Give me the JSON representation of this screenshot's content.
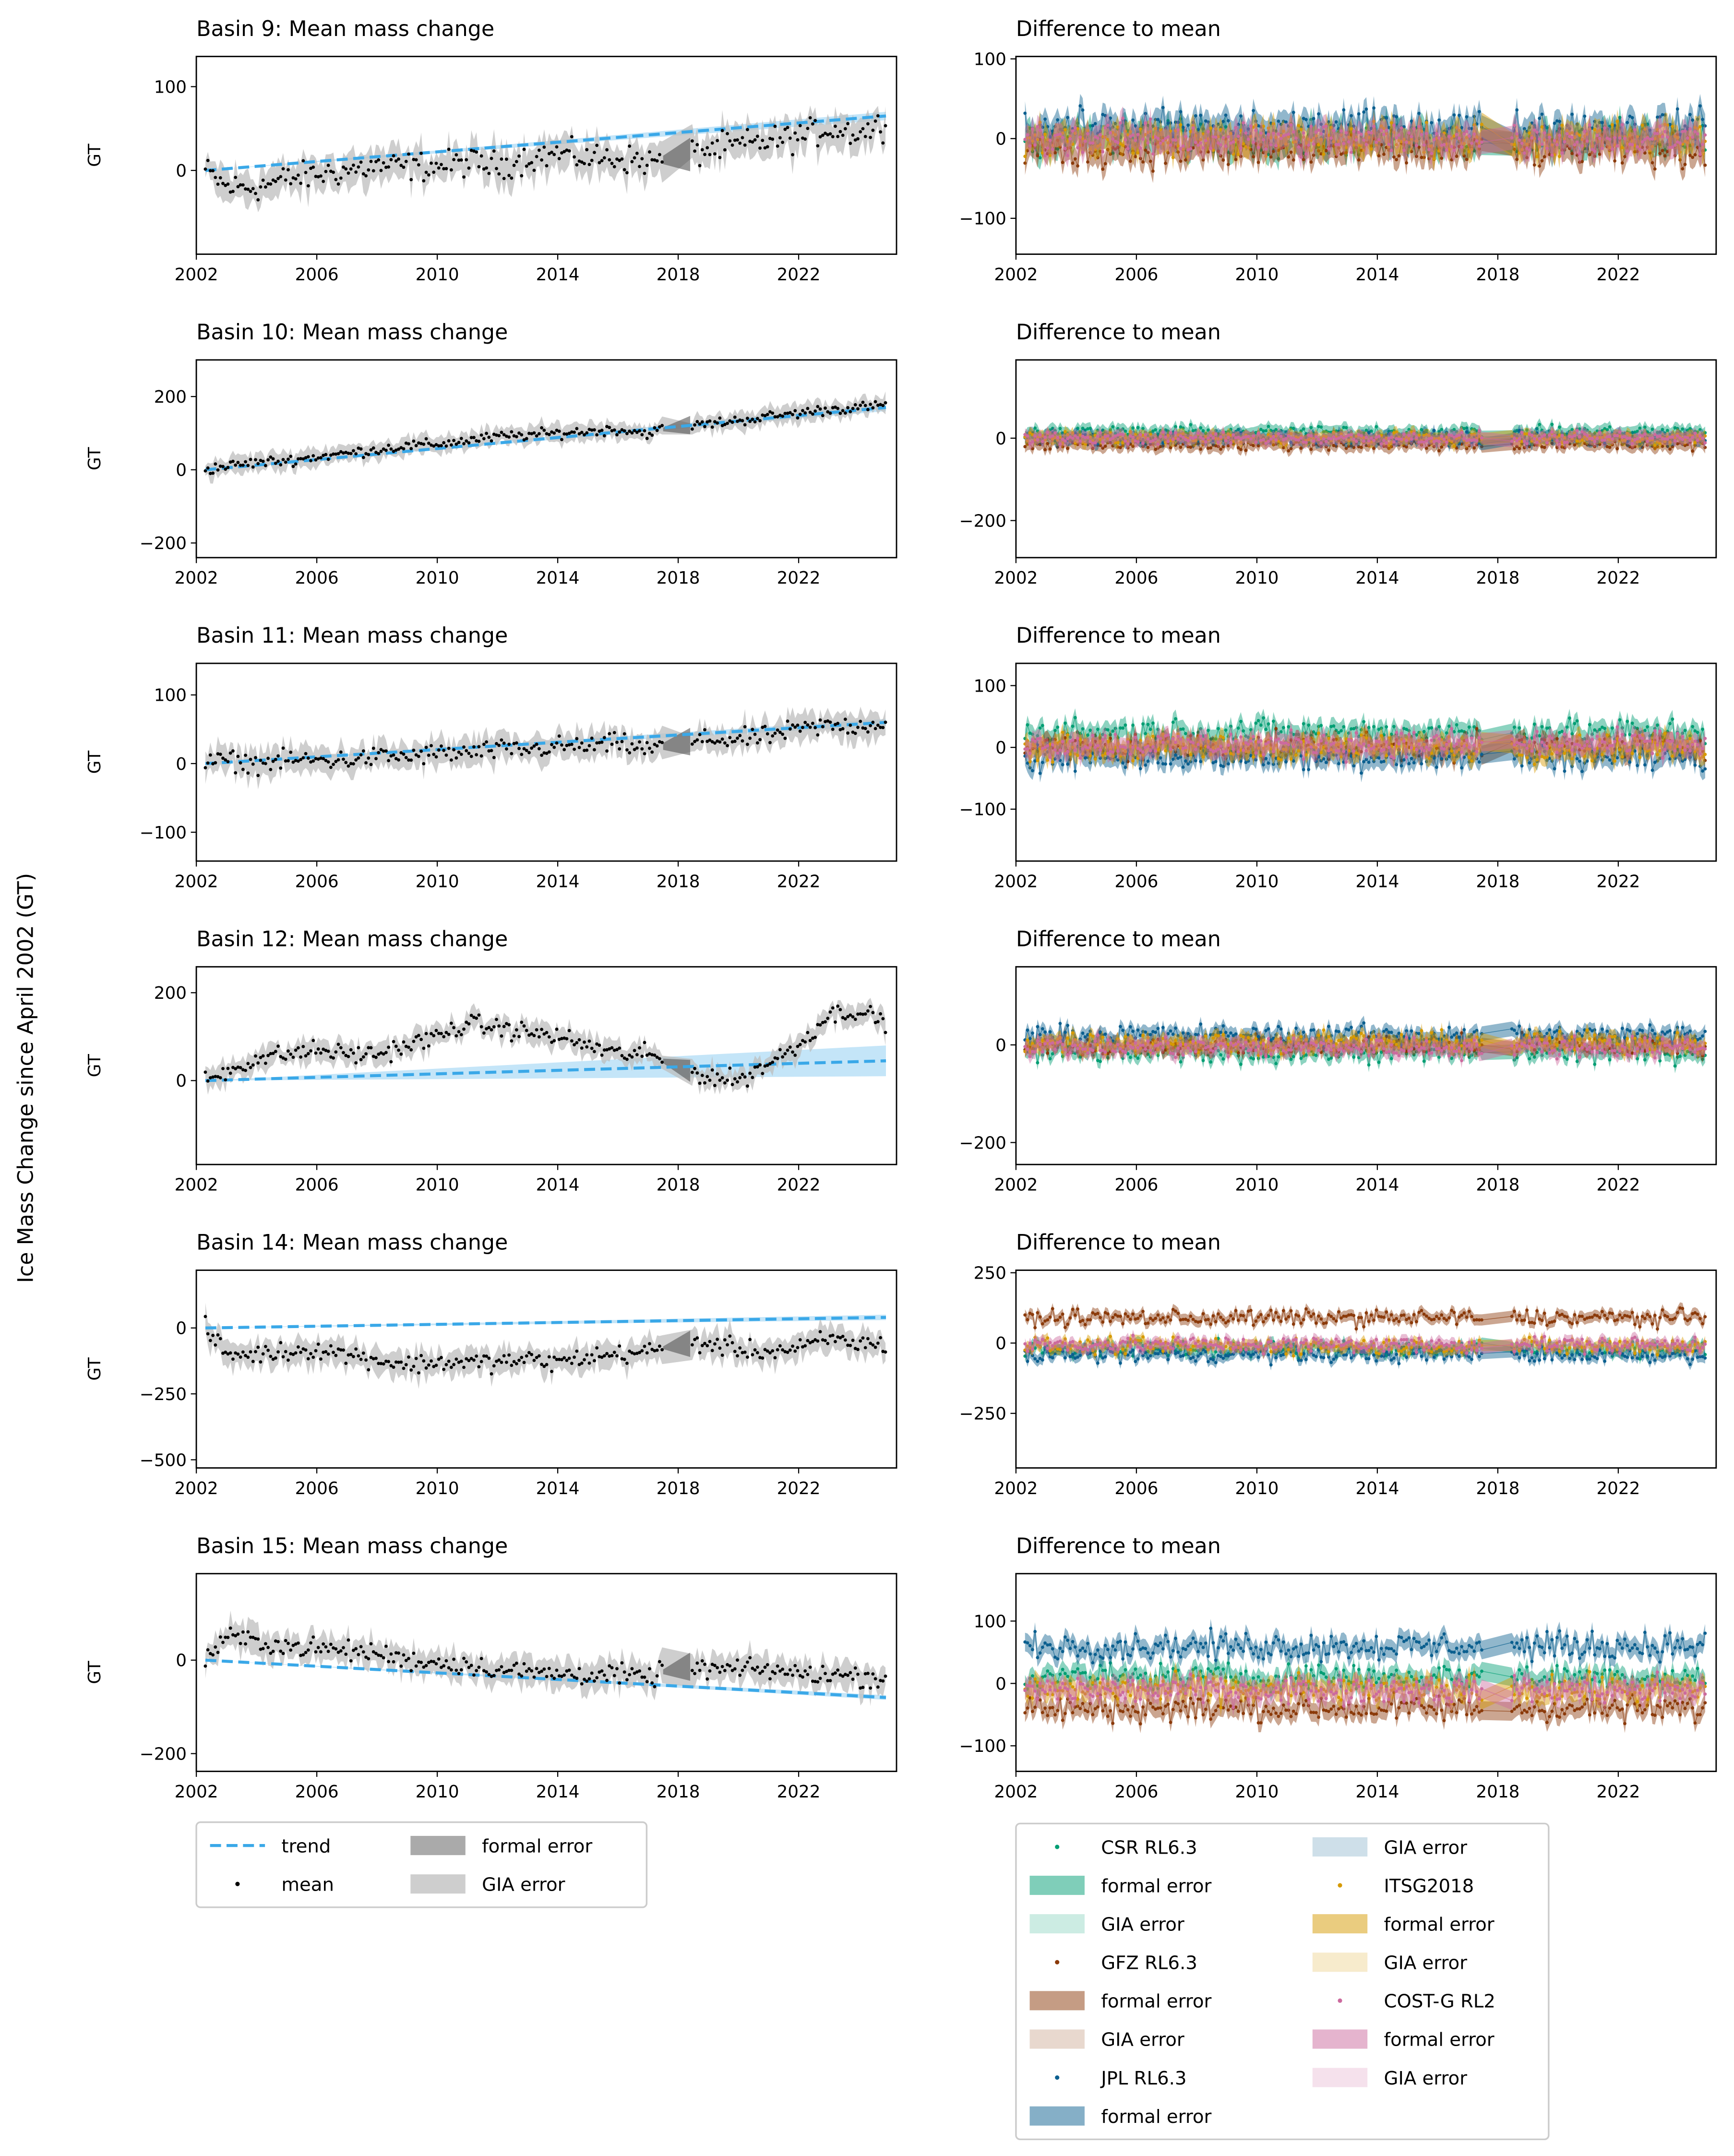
{
  "suptitle": "Ice Mass Change since April 2002 (GT)",
  "colors": {
    "trend": "#3AA8E8",
    "mean": "#000000",
    "formal": "#555555",
    "gia": "#bdbdbd",
    "CSR": "#009E73",
    "GFZ": "#8B3A0A",
    "JPL": "#0B5F8F",
    "ITSG": "#D69A00",
    "COSTG": "#CC6A9E"
  },
  "chart_data": [
    {
      "type": "line",
      "title": "Basin 9: Mean mass change",
      "ylabel": "GT",
      "xlim": [
        2002,
        2025.25
      ],
      "ylim": [
        -100,
        136
      ],
      "yticks": [
        0,
        100
      ],
      "xticks": [
        2002,
        2006,
        2010,
        2014,
        2018,
        2022
      ],
      "x": [
        2002.3,
        2003,
        2004,
        2005,
        2006,
        2007,
        2008,
        2009,
        2010,
        2011,
        2012,
        2013,
        2014,
        2015,
        2016,
        2017,
        2018,
        2019,
        2020,
        2021,
        2022,
        2023,
        2024,
        2024.9
      ],
      "mean": [
        0,
        -20,
        -20,
        -10,
        -5,
        0,
        5,
        5,
        5,
        10,
        5,
        15,
        20,
        15,
        15,
        10,
        15,
        25,
        30,
        35,
        40,
        50,
        45,
        55
      ],
      "trend": [
        0,
        65
      ],
      "trend_err": 5,
      "gia_err": 20,
      "noise": 12
    },
    {
      "type": "line",
      "title": "Basin 10: Mean mass change",
      "ylabel": "GT",
      "xlim": [
        2002,
        2025.25
      ],
      "ylim": [
        -240,
        300
      ],
      "yticks": [
        -200,
        0,
        200
      ],
      "xticks": [
        2002,
        2006,
        2010,
        2014,
        2018,
        2022
      ],
      "x": [
        2002.3,
        2003,
        2004,
        2005,
        2006,
        2007,
        2008,
        2009,
        2010,
        2011,
        2012,
        2013,
        2014,
        2015,
        2016,
        2017,
        2018,
        2019,
        2020,
        2021,
        2022,
        2023,
        2024,
        2024.9
      ],
      "mean": [
        0,
        10,
        20,
        25,
        35,
        45,
        55,
        65,
        70,
        80,
        90,
        95,
        100,
        105,
        110,
        100,
        120,
        125,
        135,
        145,
        155,
        165,
        170,
        175
      ],
      "trend": [
        0,
        170
      ],
      "trend_err": 10,
      "gia_err": 25,
      "noise": 10
    },
    {
      "type": "line",
      "title": "Basin 11: Mean mass change",
      "ylabel": "GT",
      "xlim": [
        2002,
        2025.25
      ],
      "ylim": [
        -142,
        146
      ],
      "yticks": [
        -100,
        0,
        100
      ],
      "xticks": [
        2002,
        2006,
        2010,
        2014,
        2018,
        2022
      ],
      "x": [
        2002.3,
        2003,
        2004,
        2005,
        2006,
        2007,
        2008,
        2009,
        2010,
        2011,
        2012,
        2013,
        2014,
        2015,
        2016,
        2017,
        2018,
        2019,
        2020,
        2021,
        2022,
        2023,
        2024,
        2024.9
      ],
      "mean": [
        0,
        5,
        0,
        5,
        5,
        5,
        10,
        10,
        15,
        15,
        20,
        20,
        25,
        25,
        30,
        20,
        30,
        35,
        35,
        40,
        50,
        55,
        55,
        60
      ],
      "trend": [
        0,
        60
      ],
      "trend_err": 5,
      "gia_err": 20,
      "noise": 10
    },
    {
      "type": "line",
      "title": "Basin 12: Mean mass change",
      "ylabel": "GT",
      "xlim": [
        2002,
        2025.25
      ],
      "ylim": [
        -191,
        259
      ],
      "yticks": [
        0,
        200
      ],
      "xticks": [
        2002,
        2006,
        2010,
        2014,
        2018,
        2022
      ],
      "x": [
        2002.3,
        2003,
        2004,
        2005,
        2006,
        2007,
        2008,
        2009,
        2010,
        2011,
        2012,
        2013,
        2014,
        2015,
        2016,
        2017,
        2018,
        2019,
        2020,
        2021,
        2022,
        2023,
        2024,
        2024.9
      ],
      "mean": [
        0,
        20,
        50,
        60,
        70,
        60,
        60,
        80,
        100,
        130,
        120,
        110,
        100,
        80,
        60,
        60,
        30,
        10,
        0,
        40,
        80,
        150,
        160,
        130
      ],
      "trend": [
        0,
        45
      ],
      "trend_err": 35,
      "gia_err": 25,
      "noise": 15
    },
    {
      "type": "line",
      "title": "Basin 14: Mean mass change",
      "ylabel": "GT",
      "xlim": [
        2002,
        2025.25
      ],
      "ylim": [
        -531,
        219
      ],
      "yticks": [
        -500,
        -250,
        0
      ],
      "xticks": [
        2002,
        2006,
        2010,
        2014,
        2018,
        2022
      ],
      "x": [
        2002.3,
        2003,
        2004,
        2005,
        2006,
        2007,
        2008,
        2009,
        2010,
        2011,
        2012,
        2013,
        2014,
        2015,
        2016,
        2017,
        2018,
        2019,
        2020,
        2021,
        2022,
        2023,
        2024,
        2024.9
      ],
      "mean": [
        0,
        -100,
        -100,
        -90,
        -80,
        -100,
        -120,
        -140,
        -130,
        -130,
        -130,
        -120,
        -130,
        -110,
        -100,
        -90,
        -60,
        -60,
        -80,
        -90,
        -80,
        -40,
        -60,
        -60
      ],
      "trend": [
        0,
        40
      ],
      "trend_err": 10,
      "gia_err": 50,
      "noise": 25
    },
    {
      "type": "line",
      "title": "Basin 15: Mean mass change",
      "ylabel": "GT",
      "xlim": [
        2002,
        2025.25
      ],
      "ylim": [
        -238,
        185
      ],
      "yticks": [
        -200,
        0
      ],
      "xticks": [
        2002,
        2006,
        2010,
        2014,
        2018,
        2022
      ],
      "x": [
        2002.3,
        2003,
        2004,
        2005,
        2006,
        2007,
        2008,
        2009,
        2010,
        2011,
        2012,
        2013,
        2014,
        2015,
        2016,
        2017,
        2018,
        2019,
        2020,
        2021,
        2022,
        2023,
        2024,
        2024.9
      ],
      "mean": [
        0,
        50,
        40,
        30,
        25,
        20,
        15,
        0,
        -5,
        -10,
        -20,
        -25,
        -30,
        -30,
        -30,
        -40,
        -10,
        -20,
        -20,
        -20,
        -30,
        -30,
        -35,
        -40
      ],
      "trend": [
        0,
        -80
      ],
      "trend_err": 5,
      "gia_err": 30,
      "noise": 15
    }
  ],
  "diff_data": [
    {
      "type": "scatter",
      "title": "Difference to mean",
      "ylim": [
        -145,
        103
      ],
      "yticks": [
        -100,
        0,
        100
      ],
      "noise": 15,
      "formal": 15,
      "offsets": {
        "CSR": 0,
        "GFZ": -15,
        "JPL": 15,
        "ITSG": 0,
        "COSTG": 0
      }
    },
    {
      "type": "scatter",
      "title": "Difference to mean",
      "ylim": [
        -290,
        190
      ],
      "yticks": [
        -200,
        0
      ],
      "noise": 10,
      "formal": 15,
      "offsets": {
        "CSR": 15,
        "GFZ": -15,
        "JPL": 0,
        "ITSG": 0,
        "COSTG": 0
      }
    },
    {
      "type": "scatter",
      "title": "Difference to mean",
      "ylim": [
        -184,
        136
      ],
      "yticks": [
        -100,
        0,
        100
      ],
      "noise": 15,
      "formal": 15,
      "offsets": {
        "CSR": 25,
        "GFZ": 0,
        "JPL": -15,
        "ITSG": 0,
        "COSTG": 5
      }
    },
    {
      "type": "scatter",
      "title": "Difference to mean",
      "ylim": [
        -245,
        160
      ],
      "yticks": [
        -200,
        0
      ],
      "noise": 15,
      "formal": 15,
      "offsets": {
        "CSR": -15,
        "GFZ": 0,
        "JPL": 20,
        "ITSG": 5,
        "COSTG": -5
      }
    },
    {
      "type": "scatter",
      "title": "Difference to mean",
      "ylim": [
        -444,
        259
      ],
      "yticks": [
        -250,
        0,
        250
      ],
      "noise": 20,
      "formal": 20,
      "offsets": {
        "CSR": -20,
        "GFZ": 90,
        "JPL": -40,
        "ITSG": -10,
        "COSTG": -5
      }
    },
    {
      "type": "scatter",
      "title": "Difference to mean",
      "ylim": [
        -141,
        176
      ],
      "yticks": [
        -100,
        0,
        100
      ],
      "noise": 15,
      "formal": 15,
      "offsets": {
        "CSR": 10,
        "GFZ": -40,
        "JPL": 60,
        "ITSG": -10,
        "COSTG": -10
      }
    }
  ],
  "legend_left": [
    {
      "label": "trend",
      "kind": "dash",
      "color": "trend"
    },
    {
      "label": "mean",
      "kind": "dot",
      "color": "mean"
    },
    {
      "label": "formal error",
      "kind": "patch",
      "color": "formal"
    },
    {
      "label": "GIA error",
      "kind": "patch",
      "color": "gia"
    }
  ],
  "legend_right": [
    {
      "label": "CSR RL6.3",
      "kind": "dot",
      "color": "CSR"
    },
    {
      "label": "formal error",
      "kind": "patch",
      "color": "CSR"
    },
    {
      "label": "GIA error",
      "kind": "light",
      "color": "CSR"
    },
    {
      "label": "GFZ RL6.3",
      "kind": "dot",
      "color": "GFZ"
    },
    {
      "label": "formal error",
      "kind": "patch",
      "color": "GFZ"
    },
    {
      "label": "GIA error",
      "kind": "light",
      "color": "GFZ"
    },
    {
      "label": "JPL RL6.3",
      "kind": "dot",
      "color": "JPL"
    },
    {
      "label": "formal error",
      "kind": "patch",
      "color": "JPL"
    },
    {
      "label": "GIA error",
      "kind": "light",
      "color": "JPL"
    },
    {
      "label": "ITSG2018",
      "kind": "dot",
      "color": "ITSG"
    },
    {
      "label": "formal error",
      "kind": "patch",
      "color": "ITSG"
    },
    {
      "label": "GIA error",
      "kind": "light",
      "color": "ITSG"
    },
    {
      "label": "COST-G RL2",
      "kind": "dot",
      "color": "COSTG"
    },
    {
      "label": "formal error",
      "kind": "patch",
      "color": "COSTG"
    },
    {
      "label": "GIA error",
      "kind": "light",
      "color": "COSTG"
    }
  ]
}
